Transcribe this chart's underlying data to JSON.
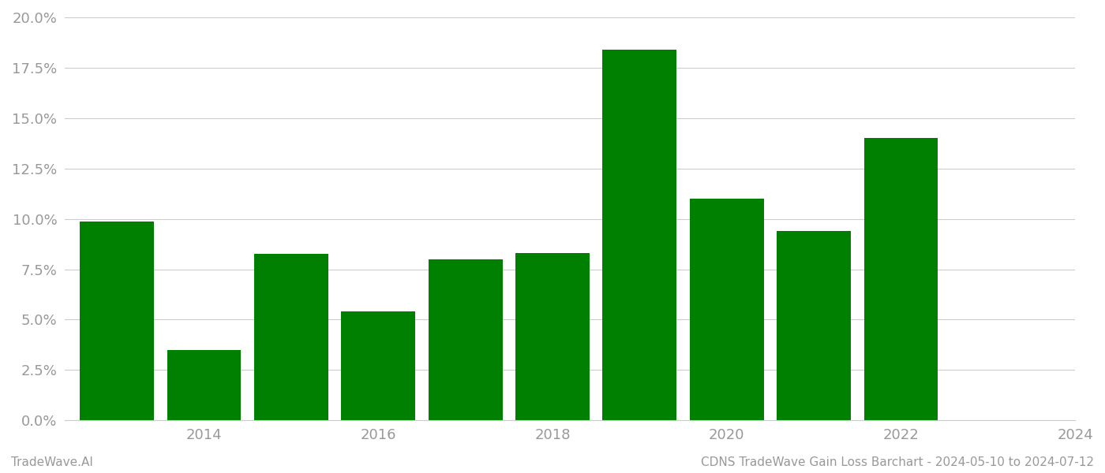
{
  "years": [
    2013,
    2014,
    2015,
    2016,
    2017,
    2018,
    2019,
    2020,
    2021,
    2022,
    2023
  ],
  "values": [
    0.0988,
    0.035,
    0.0825,
    0.054,
    0.08,
    0.083,
    0.184,
    0.11,
    0.094,
    0.14,
    0.0
  ],
  "bar_color": "#008000",
  "background_color": "#ffffff",
  "footer_left": "TradeWave.AI",
  "footer_right": "CDNS TradeWave Gain Loss Barchart - 2024-05-10 to 2024-07-12",
  "ylim": [
    0,
    0.2
  ],
  "ytick_step": 0.025,
  "grid_color": "#cccccc",
  "tick_label_color": "#999999",
  "footer_color": "#999999",
  "xtick_positions": [
    1,
    3,
    5,
    7,
    9,
    11
  ],
  "xtick_labels": [
    "2014",
    "2016",
    "2018",
    "2020",
    "2022",
    "2024"
  ]
}
